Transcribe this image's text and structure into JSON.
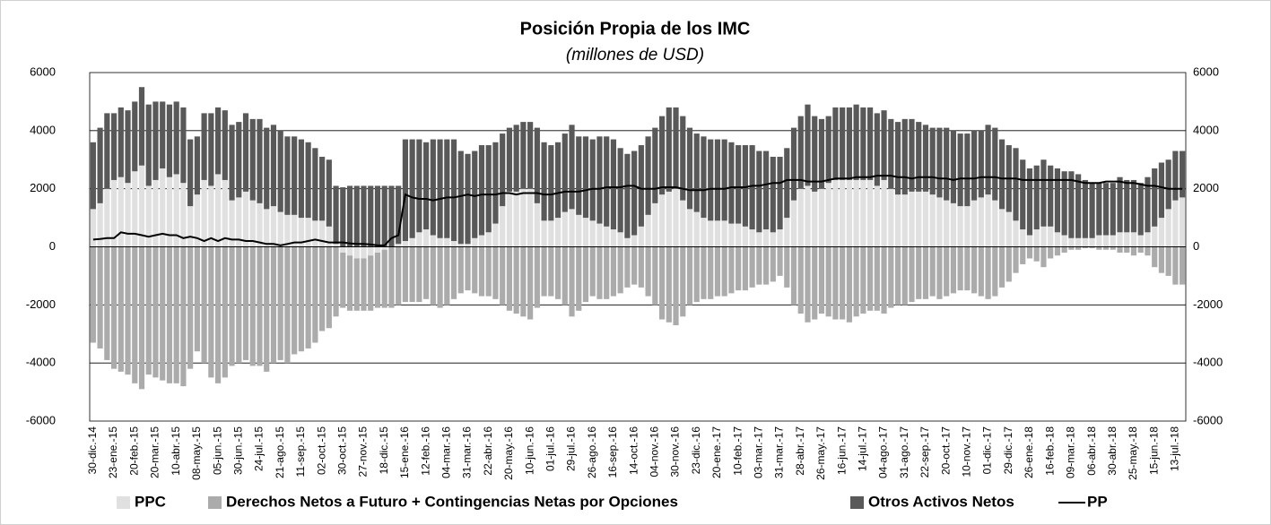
{
  "chart_data": {
    "type": "bar",
    "title": "Posición Propia de los IMC",
    "subtitle": "(millones de USD)",
    "categories": [
      "30-dic.-14",
      null,
      null,
      "23-ene.-15",
      null,
      null,
      "20-feb.-15",
      null,
      null,
      "20-mar.-15",
      null,
      null,
      "10-abr.-15",
      null,
      null,
      "08-may.-15",
      null,
      null,
      "05-jun.-15",
      null,
      null,
      "30-jun.-15",
      null,
      null,
      "24-jul.-15",
      null,
      null,
      "21-ago.-15",
      null,
      null,
      "11-sep.-15",
      null,
      null,
      "02-oct.-15",
      null,
      null,
      "30-oct.-15",
      null,
      null,
      "27-nov.-15",
      null,
      null,
      "18-dic.-15",
      null,
      null,
      "15-ene.-16",
      null,
      null,
      "12-feb.-16",
      null,
      null,
      "04-mar.-16",
      null,
      null,
      "31-mar.-16",
      null,
      null,
      "22-abr.-16",
      null,
      null,
      "20-may.-16",
      null,
      null,
      "10-jun.-16",
      null,
      null,
      "01-jul.-16",
      null,
      null,
      "29-jul.-16",
      null,
      null,
      "26-ago.-16",
      null,
      null,
      "16-sep.-16",
      null,
      null,
      "14-oct.-16",
      null,
      null,
      "04-nov.-16",
      null,
      null,
      "30-nov.-16",
      null,
      null,
      "23-dic.-16",
      null,
      null,
      "20-ene.-17",
      null,
      null,
      "10-feb.-17",
      null,
      null,
      "03-mar.-17",
      null,
      null,
      "31-mar.-17",
      null,
      null,
      "28-abr.-17",
      null,
      null,
      "26-may.-17",
      null,
      null,
      "16-jun.-17",
      null,
      null,
      "14-jul.-17",
      null,
      null,
      "04-ago.-17",
      null,
      null,
      "31-ago.-17",
      null,
      null,
      "22-sep.-17",
      null,
      null,
      "20-oct.-17",
      null,
      null,
      "10-nov.-17",
      null,
      null,
      "01-dic.-17",
      null,
      null,
      "29-dic.-17",
      null,
      null,
      "26-ene.-18",
      null,
      null,
      "16-feb.-18",
      null,
      null,
      "09-mar.-18",
      null,
      null,
      "06-abr.-18",
      null,
      null,
      "30-abr.-18",
      null,
      null,
      "25-may.-18",
      null,
      null,
      "15-jun.-18",
      null,
      null,
      "13-jul.-18",
      null
    ],
    "series": [
      {
        "name": "PPC",
        "color": "#e0e0e0",
        "values": [
          1300,
          1500,
          2000,
          2300,
          2400,
          2200,
          2600,
          2800,
          2100,
          2300,
          2700,
          2400,
          2500,
          2200,
          1400,
          1800,
          2300,
          2100,
          2500,
          2300,
          1600,
          1700,
          1900,
          1600,
          1500,
          1300,
          1400,
          1200,
          1100,
          1100,
          1000,
          1000,
          900,
          900,
          700,
          100,
          -200,
          -300,
          -400,
          -400,
          -300,
          -200,
          -100,
          0,
          100,
          200,
          300,
          500,
          600,
          400,
          300,
          300,
          200,
          100,
          100,
          300,
          400,
          500,
          800,
          1400,
          1900,
          1900,
          2000,
          2000,
          1500,
          900,
          900,
          1000,
          1200,
          1300,
          1100,
          1000,
          900,
          800,
          700,
          600,
          500,
          300,
          400,
          700,
          1100,
          1500,
          1800,
          1900,
          2000,
          1600,
          1300,
          1200,
          1000,
          900,
          900,
          900,
          800,
          800,
          700,
          600,
          500,
          600,
          500,
          600,
          1000,
          1600,
          2000,
          2100,
          1900,
          2000,
          2200,
          2300,
          2300,
          2300,
          2300,
          2300,
          2300,
          2100,
          2300,
          2000,
          1800,
          1800,
          1900,
          1900,
          1900,
          1800,
          1700,
          1600,
          1500,
          1400,
          1400,
          1600,
          1700,
          1800,
          1600,
          1300,
          1200,
          900,
          600,
          400,
          600,
          700,
          700,
          500,
          400,
          300,
          300,
          300,
          300,
          400,
          400,
          400,
          500,
          500,
          500,
          400,
          500,
          700,
          1000,
          1300,
          1600,
          1700
        ]
      },
      {
        "name": "Derechos Netos a Futuro + Contingencias Netas por Opciones",
        "color": "#ababab",
        "values": [
          -3300,
          -3500,
          -3900,
          -4200,
          -4300,
          -4400,
          -4700,
          -4900,
          -4400,
          -4500,
          -4600,
          -4700,
          -4700,
          -4800,
          -4200,
          -3600,
          -4000,
          -4500,
          -4700,
          -4500,
          -4100,
          -4000,
          -3900,
          -4100,
          -4100,
          -4300,
          -4000,
          -3900,
          -4000,
          -3700,
          -3600,
          -3500,
          -3300,
          -2900,
          -2800,
          -2400,
          -1900,
          -1900,
          -1800,
          -1800,
          -1900,
          -1900,
          -2000,
          -2100,
          -2000,
          -1900,
          -1900,
          -1900,
          -1800,
          -2000,
          -2100,
          -2000,
          -1800,
          -1600,
          -1500,
          -1600,
          -1700,
          -1700,
          -1800,
          -2000,
          -2200,
          -2300,
          -2400,
          -2500,
          -2100,
          -1700,
          -1700,
          -1800,
          -2000,
          -2400,
          -2200,
          -1900,
          -1700,
          -1800,
          -1800,
          -1700,
          -1600,
          -1400,
          -1300,
          -1400,
          -1700,
          -2000,
          -2500,
          -2600,
          -2700,
          -2400,
          -2000,
          -1900,
          -1800,
          -1800,
          -1700,
          -1700,
          -1600,
          -1500,
          -1500,
          -1400,
          -1300,
          -1300,
          -1200,
          -1000,
          -1400,
          -2000,
          -2300,
          -2600,
          -2500,
          -2300,
          -2400,
          -2500,
          -2500,
          -2600,
          -2400,
          -2300,
          -2200,
          -2200,
          -2300,
          -2100,
          -2000,
          -2000,
          -1900,
          -1800,
          -1800,
          -1700,
          -1800,
          -1700,
          -1600,
          -1500,
          -1500,
          -1600,
          -1700,
          -1800,
          -1700,
          -1400,
          -1200,
          -900,
          -600,
          -400,
          -500,
          -700,
          -400,
          -300,
          -200,
          -100,
          -100,
          -50,
          -50,
          -100,
          -100,
          -100,
          -200,
          -200,
          -300,
          -200,
          -300,
          -700,
          -900,
          -1000,
          -1300,
          -1300
        ]
      },
      {
        "name": "Otros Activos Netos",
        "color": "#595959",
        "values": [
          2300,
          2600,
          2600,
          2300,
          2400,
          2500,
          2400,
          2700,
          2800,
          2700,
          2300,
          2500,
          2500,
          2600,
          2300,
          2000,
          2300,
          2500,
          2300,
          2400,
          2600,
          2600,
          2700,
          2800,
          2900,
          2800,
          2800,
          2800,
          2700,
          2700,
          2700,
          2600,
          2500,
          2200,
          2300,
          2000,
          2050,
          2100,
          2100,
          2100,
          2100,
          2100,
          2100,
          2100,
          2000,
          3500,
          3400,
          3200,
          3000,
          3300,
          3400,
          3400,
          3500,
          3200,
          3100,
          3000,
          3100,
          3000,
          2800,
          2500,
          2200,
          2300,
          2300,
          2300,
          2600,
          2700,
          2600,
          2600,
          2700,
          2900,
          2700,
          2800,
          2800,
          3000,
          3100,
          3100,
          2900,
          2900,
          2900,
          2800,
          2700,
          2600,
          2700,
          2900,
          2800,
          2900,
          2800,
          2700,
          2800,
          2800,
          2800,
          2800,
          2800,
          2700,
          2800,
          2900,
          2800,
          2700,
          2600,
          2500,
          2400,
          2500,
          2500,
          2800,
          2600,
          2400,
          2300,
          2500,
          2500,
          2500,
          2600,
          2500,
          2500,
          2500,
          2400,
          2400,
          2500,
          2600,
          2500,
          2400,
          2300,
          2300,
          2400,
          2500,
          2500,
          2500,
          2500,
          2400,
          2300,
          2400,
          2500,
          2400,
          2300,
          2500,
          2400,
          2300,
          2200,
          2300,
          2100,
          2200,
          2200,
          2300,
          2200,
          2000,
          1900,
          1800,
          1800,
          1800,
          1900,
          1800,
          1800,
          1800,
          1900,
          2000,
          1900,
          1700,
          1700,
          1600
        ]
      },
      {
        "name": "PP",
        "color": "#000000",
        "type": "line",
        "values": [
          250,
          270,
          300,
          300,
          500,
          450,
          450,
          400,
          350,
          400,
          450,
          400,
          400,
          300,
          350,
          300,
          200,
          300,
          200,
          300,
          250,
          250,
          200,
          200,
          150,
          100,
          100,
          50,
          100,
          150,
          150,
          200,
          250,
          200,
          150,
          150,
          150,
          120,
          100,
          100,
          80,
          50,
          50,
          300,
          400,
          1800,
          1700,
          1650,
          1650,
          1600,
          1650,
          1700,
          1700,
          1750,
          1800,
          1750,
          1800,
          1800,
          1800,
          1850,
          1850,
          1800,
          1850,
          1850,
          1850,
          1800,
          1800,
          1850,
          1900,
          1900,
          1900,
          1950,
          2000,
          2000,
          2050,
          2050,
          2050,
          2100,
          2100,
          2000,
          2000,
          2000,
          2050,
          2050,
          2050,
          2000,
          1950,
          1950,
          1950,
          2000,
          2000,
          2000,
          2050,
          2050,
          2050,
          2100,
          2100,
          2150,
          2200,
          2200,
          2300,
          2300,
          2300,
          2250,
          2250,
          2250,
          2300,
          2350,
          2350,
          2350,
          2400,
          2400,
          2400,
          2450,
          2450,
          2450,
          2400,
          2400,
          2350,
          2400,
          2400,
          2400,
          2350,
          2350,
          2300,
          2350,
          2350,
          2350,
          2400,
          2400,
          2400,
          2350,
          2350,
          2350,
          2300,
          2300,
          2300,
          2300,
          2300,
          2300,
          2300,
          2300,
          2250,
          2200,
          2200,
          2200,
          2250,
          2250,
          2250,
          2200,
          2200,
          2150,
          2100,
          2100,
          2050,
          2000,
          2000,
          2000
        ]
      }
    ],
    "ylim": [
      -6000,
      6000
    ],
    "yticks": [
      -6000,
      -4000,
      -2000,
      0,
      2000,
      4000,
      6000
    ],
    "y2lim": [
      -6000,
      6000
    ],
    "y2ticks": [
      -6000,
      -4000,
      -2000,
      0,
      2000,
      4000,
      6000
    ],
    "grid": true,
    "legend": "bottom"
  }
}
